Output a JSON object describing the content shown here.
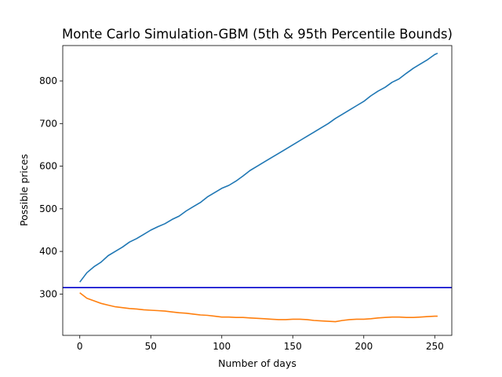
{
  "chart_data": {
    "type": "line",
    "title": "Monte Carlo Simulation-GBM (5th & 95th Percentile Bounds)",
    "xlabel": "Number of days",
    "ylabel": "Possible prices",
    "xlim": [
      -12,
      262
    ],
    "ylim": [
      203,
      883
    ],
    "xticks": [
      0,
      50,
      100,
      150,
      200,
      250
    ],
    "yticks": [
      300,
      400,
      500,
      600,
      700,
      800
    ],
    "grid": false,
    "legend": "none",
    "colors": {
      "upper": "#1f77b4",
      "lower": "#ff7f0e",
      "reference": "#0000cc"
    },
    "series": [
      {
        "key": "upper",
        "x": [
          0,
          5,
          10,
          15,
          20,
          25,
          30,
          35,
          40,
          45,
          50,
          55,
          60,
          65,
          70,
          75,
          80,
          85,
          90,
          95,
          100,
          105,
          110,
          115,
          120,
          125,
          130,
          135,
          140,
          145,
          150,
          155,
          160,
          165,
          170,
          175,
          180,
          185,
          190,
          195,
          200,
          205,
          210,
          215,
          220,
          225,
          230,
          235,
          240,
          245,
          250,
          252
        ],
        "y": [
          328,
          350,
          364,
          375,
          390,
          400,
          410,
          422,
          430,
          440,
          450,
          458,
          465,
          475,
          483,
          495,
          505,
          515,
          528,
          538,
          548,
          555,
          565,
          577,
          590,
          600,
          610,
          620,
          630,
          640,
          650,
          660,
          670,
          680,
          690,
          700,
          712,
          722,
          732,
          742,
          752,
          765,
          776,
          785,
          797,
          805,
          818,
          830,
          840,
          850,
          862,
          865
        ]
      },
      {
        "key": "lower",
        "x": [
          0,
          5,
          10,
          15,
          20,
          25,
          30,
          35,
          40,
          45,
          50,
          55,
          60,
          65,
          70,
          75,
          80,
          85,
          90,
          95,
          100,
          105,
          110,
          115,
          120,
          125,
          130,
          135,
          140,
          145,
          150,
          155,
          160,
          165,
          170,
          175,
          180,
          185,
          190,
          195,
          200,
          205,
          210,
          215,
          220,
          225,
          230,
          235,
          240,
          245,
          250,
          252
        ],
        "y": [
          303,
          290,
          284,
          278,
          274,
          270,
          268,
          266,
          265,
          263,
          262,
          261,
          260,
          258,
          256,
          255,
          253,
          251,
          250,
          248,
          246,
          246,
          245,
          245,
          244,
          243,
          242,
          241,
          240,
          240,
          241,
          241,
          240,
          238,
          237,
          236,
          235,
          238,
          240,
          241,
          241,
          242,
          244,
          245,
          246,
          246,
          245,
          245,
          246,
          247,
          248,
          248
        ]
      },
      {
        "key": "reference",
        "y": 315
      }
    ]
  }
}
